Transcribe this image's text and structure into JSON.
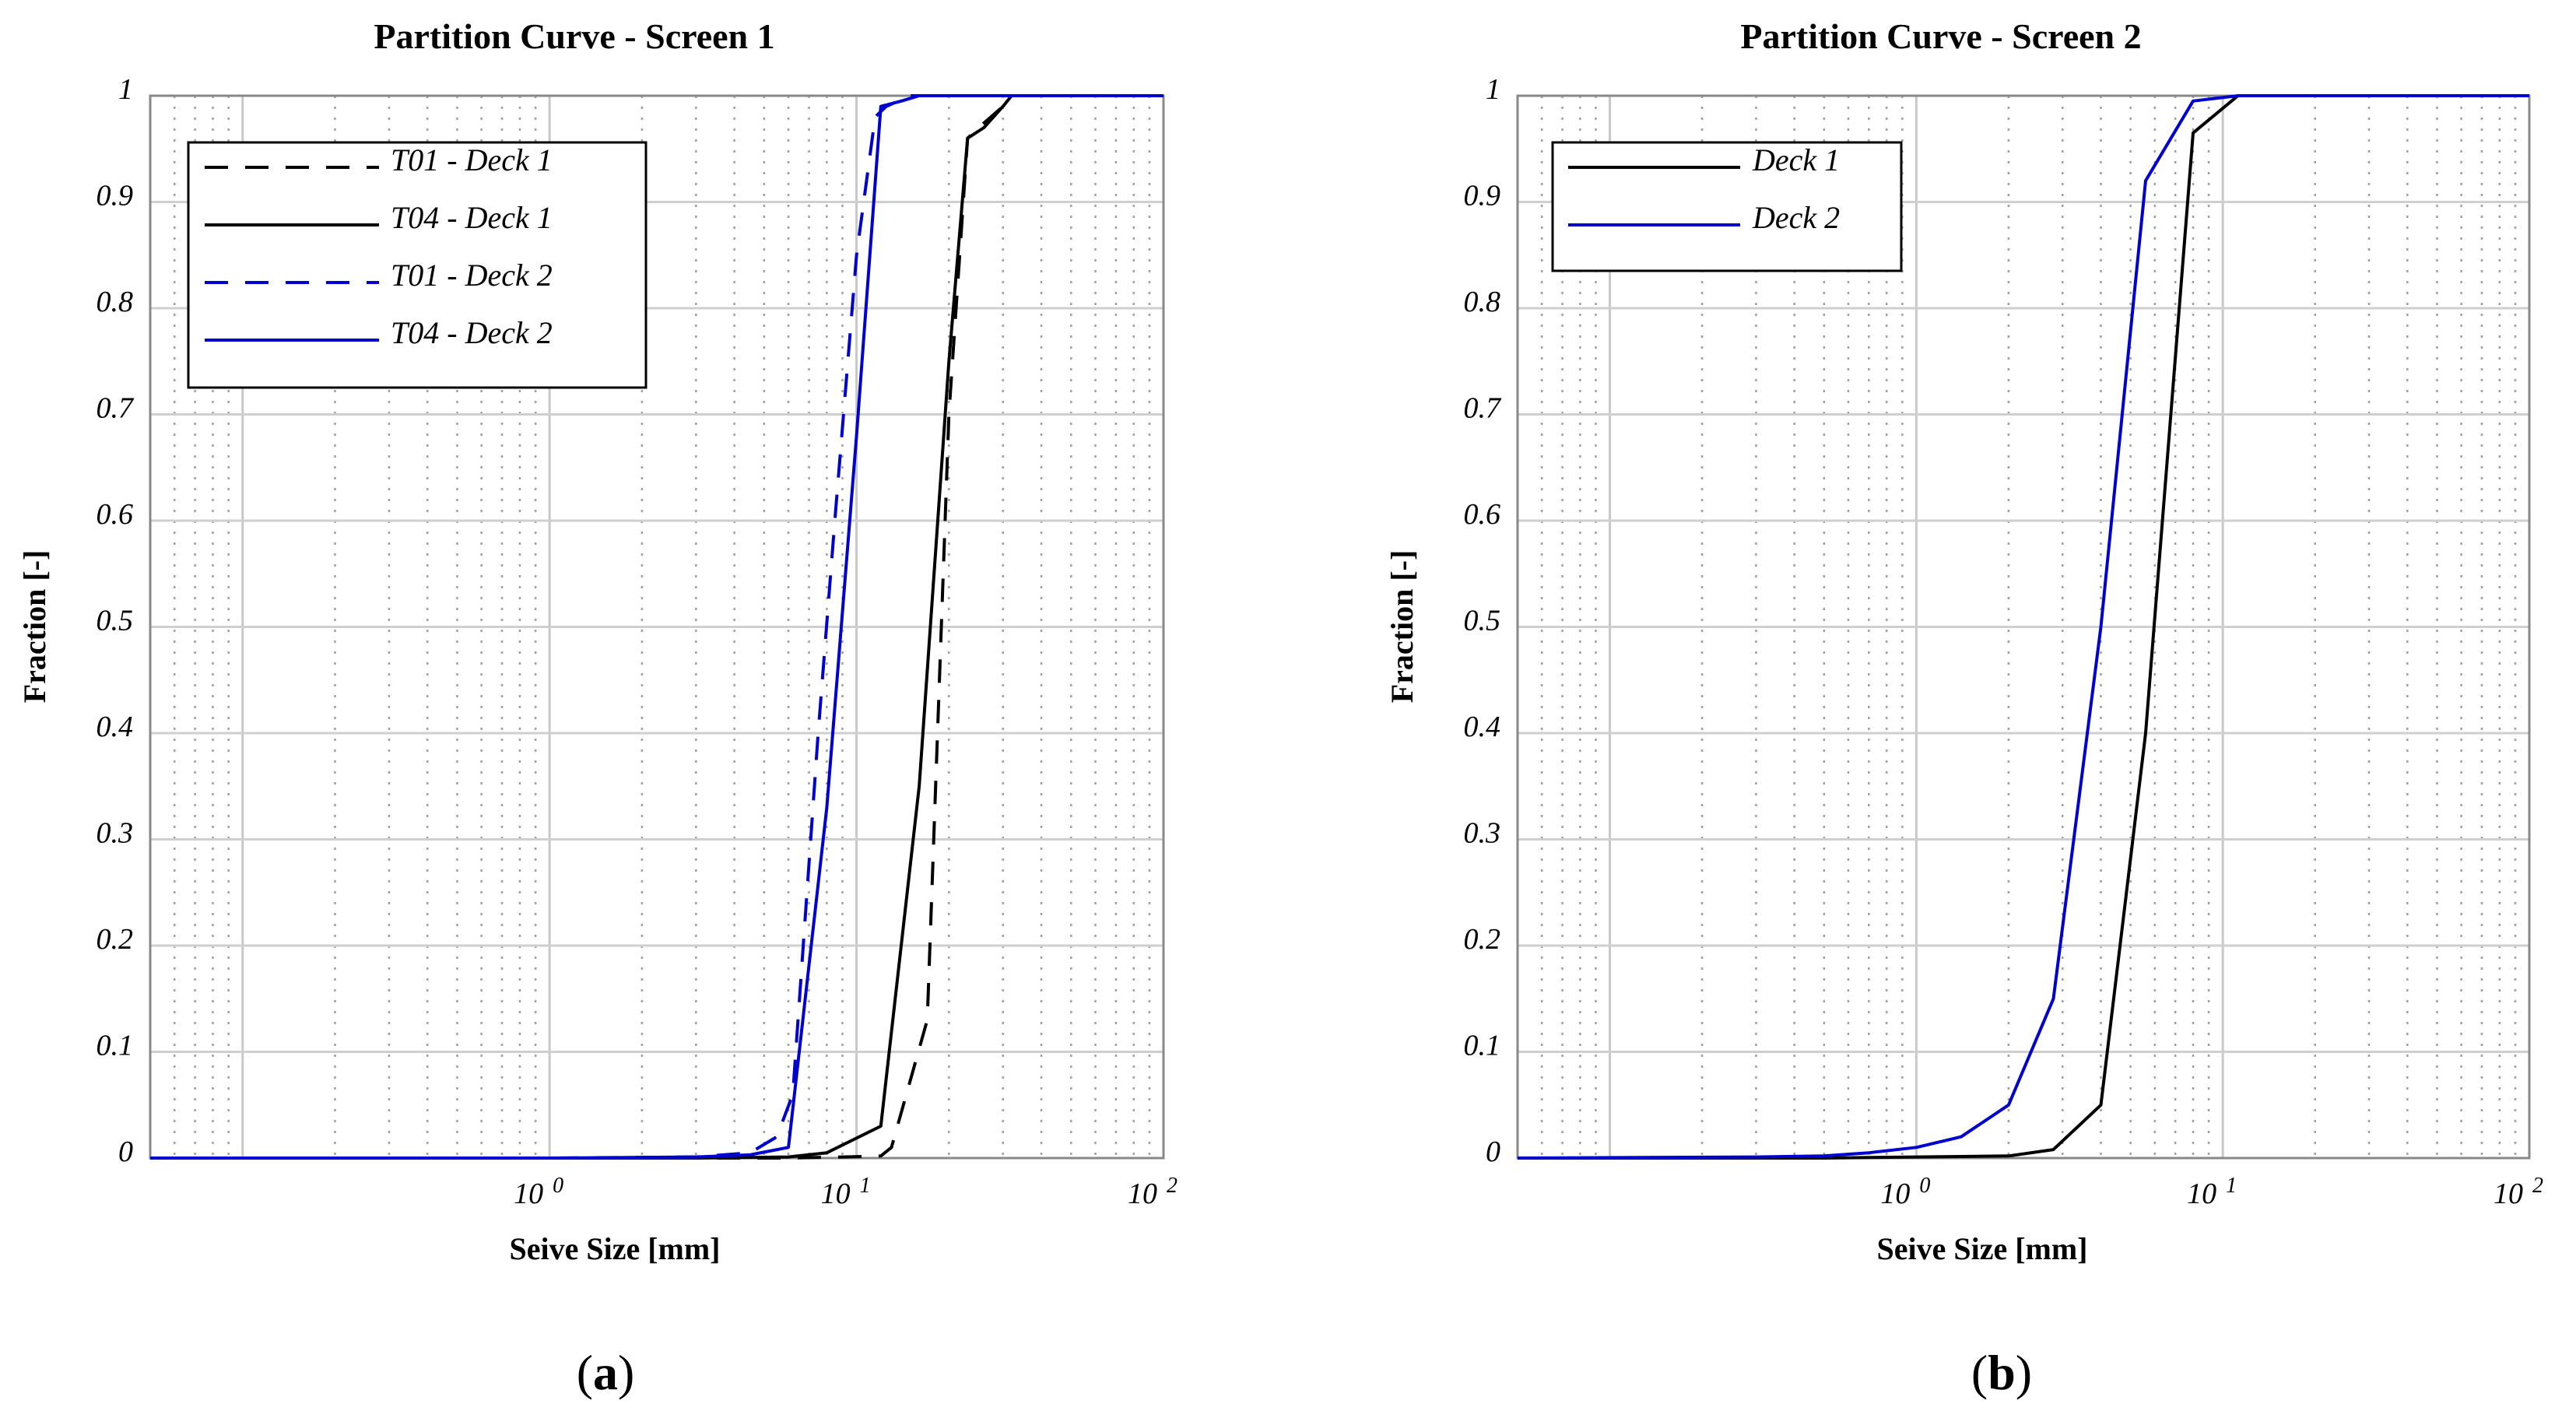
{
  "chart_data": [
    {
      "type": "line",
      "title": "Partition Curve - Screen 1",
      "xlabel": "Seive Size [mm]",
      "ylabel": "Fraction [-]",
      "xscale": "log",
      "xlim": [
        0.05,
        100
      ],
      "ylim": [
        0,
        1
      ],
      "grid": true,
      "x_ticks": [
        {
          "base": "10",
          "exp": "0",
          "value": 1
        },
        {
          "base": "10",
          "exp": "1",
          "value": 10
        },
        {
          "base": "10",
          "exp": "2",
          "value": 100
        }
      ],
      "y_ticks": [
        {
          "label": "0",
          "value": 0
        },
        {
          "label": "0.1",
          "value": 0.1
        },
        {
          "label": "0.2",
          "value": 0.2
        },
        {
          "label": "0.3",
          "value": 0.3
        },
        {
          "label": "0.4",
          "value": 0.4
        },
        {
          "label": "0.5",
          "value": 0.5
        },
        {
          "label": "0.6",
          "value": 0.6
        },
        {
          "label": "0.7",
          "value": 0.7
        },
        {
          "label": "0.8",
          "value": 0.8
        },
        {
          "label": "0.9",
          "value": 0.9
        },
        {
          "label": "1",
          "value": 1
        }
      ],
      "legend_position": "top-left",
      "caption": "(a)",
      "series": [
        {
          "name": "T01 - Deck 1",
          "color": "#000000",
          "dash": "dashed",
          "x": [
            0.05,
            1,
            3,
            6,
            9,
            12,
            13,
            17,
            20,
            23,
            25,
            30,
            32,
            100
          ],
          "y": [
            0,
            0,
            0,
            0,
            0.001,
            0.002,
            0.01,
            0.13,
            0.7,
            0.96,
            0.97,
            0.99,
            1,
            1
          ]
        },
        {
          "name": "T04 - Deck 1",
          "color": "#000000",
          "dash": "solid",
          "x": [
            0.05,
            1,
            3,
            6,
            8,
            12,
            16,
            20,
            23,
            26,
            30,
            32,
            100
          ],
          "y": [
            0,
            0,
            0,
            0.001,
            0.005,
            0.03,
            0.35,
            0.75,
            0.96,
            0.97,
            0.99,
            1,
            1
          ]
        },
        {
          "name": "T01 - Deck 2",
          "color": "#0000d0",
          "dash": "dashed",
          "x": [
            0.05,
            1,
            3,
            4.5,
            5.5,
            6.2,
            7.5,
            8.5,
            10,
            11.5,
            12.5,
            15,
            100
          ],
          "y": [
            0,
            0,
            0.001,
            0.005,
            0.02,
            0.06,
            0.4,
            0.6,
            0.85,
            0.98,
            0.99,
            1,
            1
          ]
        },
        {
          "name": "T04 - Deck 2",
          "color": "#0000d0",
          "dash": "solid",
          "x": [
            0.05,
            1,
            3,
            4.5,
            6,
            8,
            10,
            12,
            14,
            16,
            100
          ],
          "y": [
            0,
            0,
            0.001,
            0.003,
            0.01,
            0.33,
            0.68,
            0.99,
            0.995,
            1,
            1
          ]
        }
      ]
    },
    {
      "type": "line",
      "title": "Partition Curve - Screen 2",
      "xlabel": "Seive Size [mm]",
      "ylabel": "Fraction [-]",
      "xscale": "log",
      "xlim": [
        0.05,
        100
      ],
      "ylim": [
        0,
        1
      ],
      "grid": true,
      "x_ticks": [
        {
          "base": "10",
          "exp": "0",
          "value": 1
        },
        {
          "base": "10",
          "exp": "1",
          "value": 10
        },
        {
          "base": "10",
          "exp": "2",
          "value": 100
        }
      ],
      "y_ticks": [
        {
          "label": "0",
          "value": 0
        },
        {
          "label": "0.1",
          "value": 0.1
        },
        {
          "label": "0.2",
          "value": 0.2
        },
        {
          "label": "0.3",
          "value": 0.3
        },
        {
          "label": "0.4",
          "value": 0.4
        },
        {
          "label": "0.5",
          "value": 0.5
        },
        {
          "label": "0.6",
          "value": 0.6
        },
        {
          "label": "0.7",
          "value": 0.7
        },
        {
          "label": "0.8",
          "value": 0.8
        },
        {
          "label": "0.9",
          "value": 0.9
        },
        {
          "label": "1",
          "value": 1
        }
      ],
      "legend_position": "top-left",
      "caption": "(b)",
      "series": [
        {
          "name": "Deck 1",
          "color": "#000000",
          "dash": "solid",
          "x": [
            0.05,
            0.5,
            1,
            2,
            2.8,
            4,
            5.6,
            8,
            11.2,
            100
          ],
          "y": [
            0,
            0,
            0.001,
            0.002,
            0.008,
            0.05,
            0.4,
            0.965,
            1,
            1
          ]
        },
        {
          "name": "Deck 2",
          "color": "#0000d0",
          "dash": "solid",
          "x": [
            0.05,
            0.3,
            0.5,
            0.7,
            1,
            1.4,
            2,
            2.8,
            4,
            5.6,
            8,
            11.2,
            100
          ],
          "y": [
            0,
            0.001,
            0.002,
            0.005,
            0.01,
            0.02,
            0.05,
            0.15,
            0.5,
            0.92,
            0.995,
            1,
            1
          ]
        }
      ]
    }
  ]
}
